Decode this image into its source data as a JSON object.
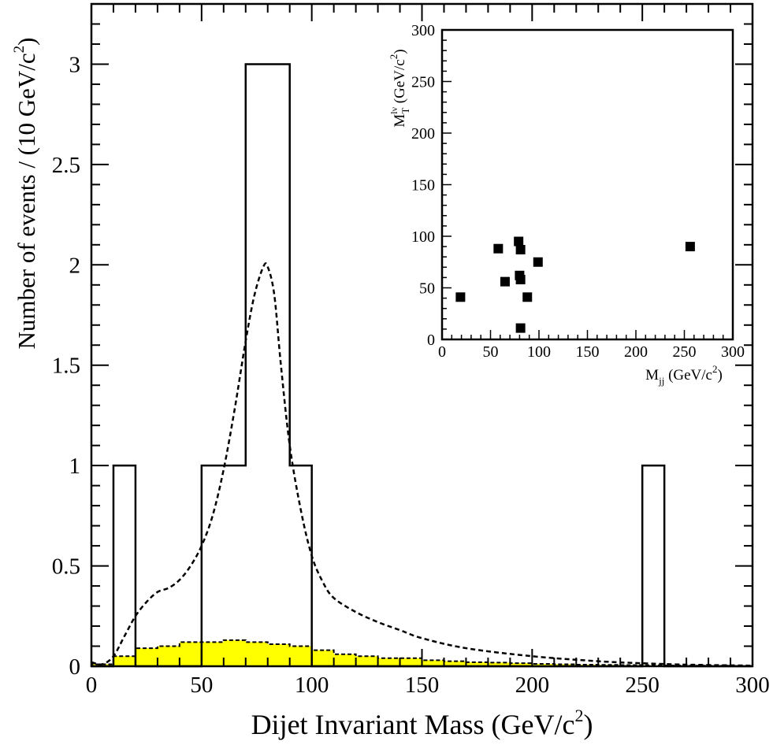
{
  "chart_data": [
    {
      "type": "bar",
      "xlabel_main": "Dijet Invariant Mass (GeV/c",
      "xlabel_sup": "2",
      "xlabel_close": ")",
      "ylabel_main": "Number of events / (10 GeV/c",
      "ylabel_sup": "2",
      "ylabel_close": ")",
      "xlim": [
        0,
        300
      ],
      "ylim": [
        0,
        3.3
      ],
      "xticks": [
        "0",
        "50",
        "100",
        "150",
        "200",
        "250",
        "300"
      ],
      "yticks": [
        "0",
        "0.5",
        "1",
        "1.5",
        "2",
        "2.5",
        "3"
      ],
      "series": [
        {
          "style": "histogram-outline",
          "bin_width": 10,
          "bin_edges_start": 0,
          "values": [
            0,
            1,
            0,
            0,
            0,
            1,
            1,
            3,
            3,
            1,
            0,
            0,
            0,
            0,
            0,
            0,
            0,
            0,
            0,
            0,
            0,
            0,
            0,
            0,
            0,
            1,
            0,
            0,
            0,
            0
          ]
        },
        {
          "style": "histogram-filled",
          "color": "#ffff00",
          "bin_width": 10,
          "bin_edges_start": 0,
          "values": [
            0.01,
            0.05,
            0.09,
            0.1,
            0.12,
            0.12,
            0.13,
            0.12,
            0.11,
            0.1,
            0.08,
            0.06,
            0.05,
            0.04,
            0.04,
            0.03,
            0.025,
            0.02,
            0.018,
            0.015,
            0.012,
            0.01,
            0.008,
            0.007,
            0.006,
            0.005,
            0.004,
            0.003,
            0.003,
            0.002
          ]
        },
        {
          "style": "dashed-curve",
          "x": [
            0,
            5,
            10,
            15,
            20,
            25,
            30,
            35,
            40,
            45,
            50,
            55,
            60,
            65,
            70,
            74,
            78,
            80,
            83,
            86,
            90,
            95,
            100,
            105,
            110,
            120,
            130,
            140,
            150,
            170,
            200,
            230,
            250,
            270,
            300
          ],
          "y": [
            0.02,
            0.01,
            0.05,
            0.15,
            0.25,
            0.32,
            0.37,
            0.39,
            0.43,
            0.5,
            0.6,
            0.75,
            0.98,
            1.28,
            1.62,
            1.85,
            1.99,
            1.99,
            1.85,
            1.5,
            1.1,
            0.78,
            0.55,
            0.42,
            0.34,
            0.27,
            0.22,
            0.18,
            0.14,
            0.09,
            0.05,
            0.025,
            0.015,
            0.008,
            0.003
          ]
        }
      ]
    },
    {
      "type": "scatter",
      "xlabel_main": "M",
      "xlabel_sub": "jj",
      "xlabel_rest": " (GeV/c",
      "xlabel_sup": "2",
      "xlabel_close": ")",
      "ylabel_main": "M",
      "ylabel_sub": "T",
      "ylabel_supscript": "lν",
      "ylabel_rest": " (GeV/c",
      "ylabel_sup": "2",
      "ylabel_close": ")",
      "xlim": [
        0,
        300
      ],
      "ylim": [
        0,
        300
      ],
      "xticks": [
        "0",
        "50",
        "100",
        "150",
        "200",
        "250",
        "300"
      ],
      "yticks": [
        "0",
        "50",
        "100",
        "150",
        "200",
        "250",
        "300"
      ],
      "points": [
        {
          "x": 19,
          "y": 41
        },
        {
          "x": 58,
          "y": 88
        },
        {
          "x": 65,
          "y": 56
        },
        {
          "x": 79,
          "y": 95
        },
        {
          "x": 81,
          "y": 87
        },
        {
          "x": 80,
          "y": 62
        },
        {
          "x": 81,
          "y": 58
        },
        {
          "x": 88,
          "y": 41
        },
        {
          "x": 81,
          "y": 11
        },
        {
          "x": 99,
          "y": 75
        },
        {
          "x": 256,
          "y": 90
        }
      ]
    }
  ]
}
